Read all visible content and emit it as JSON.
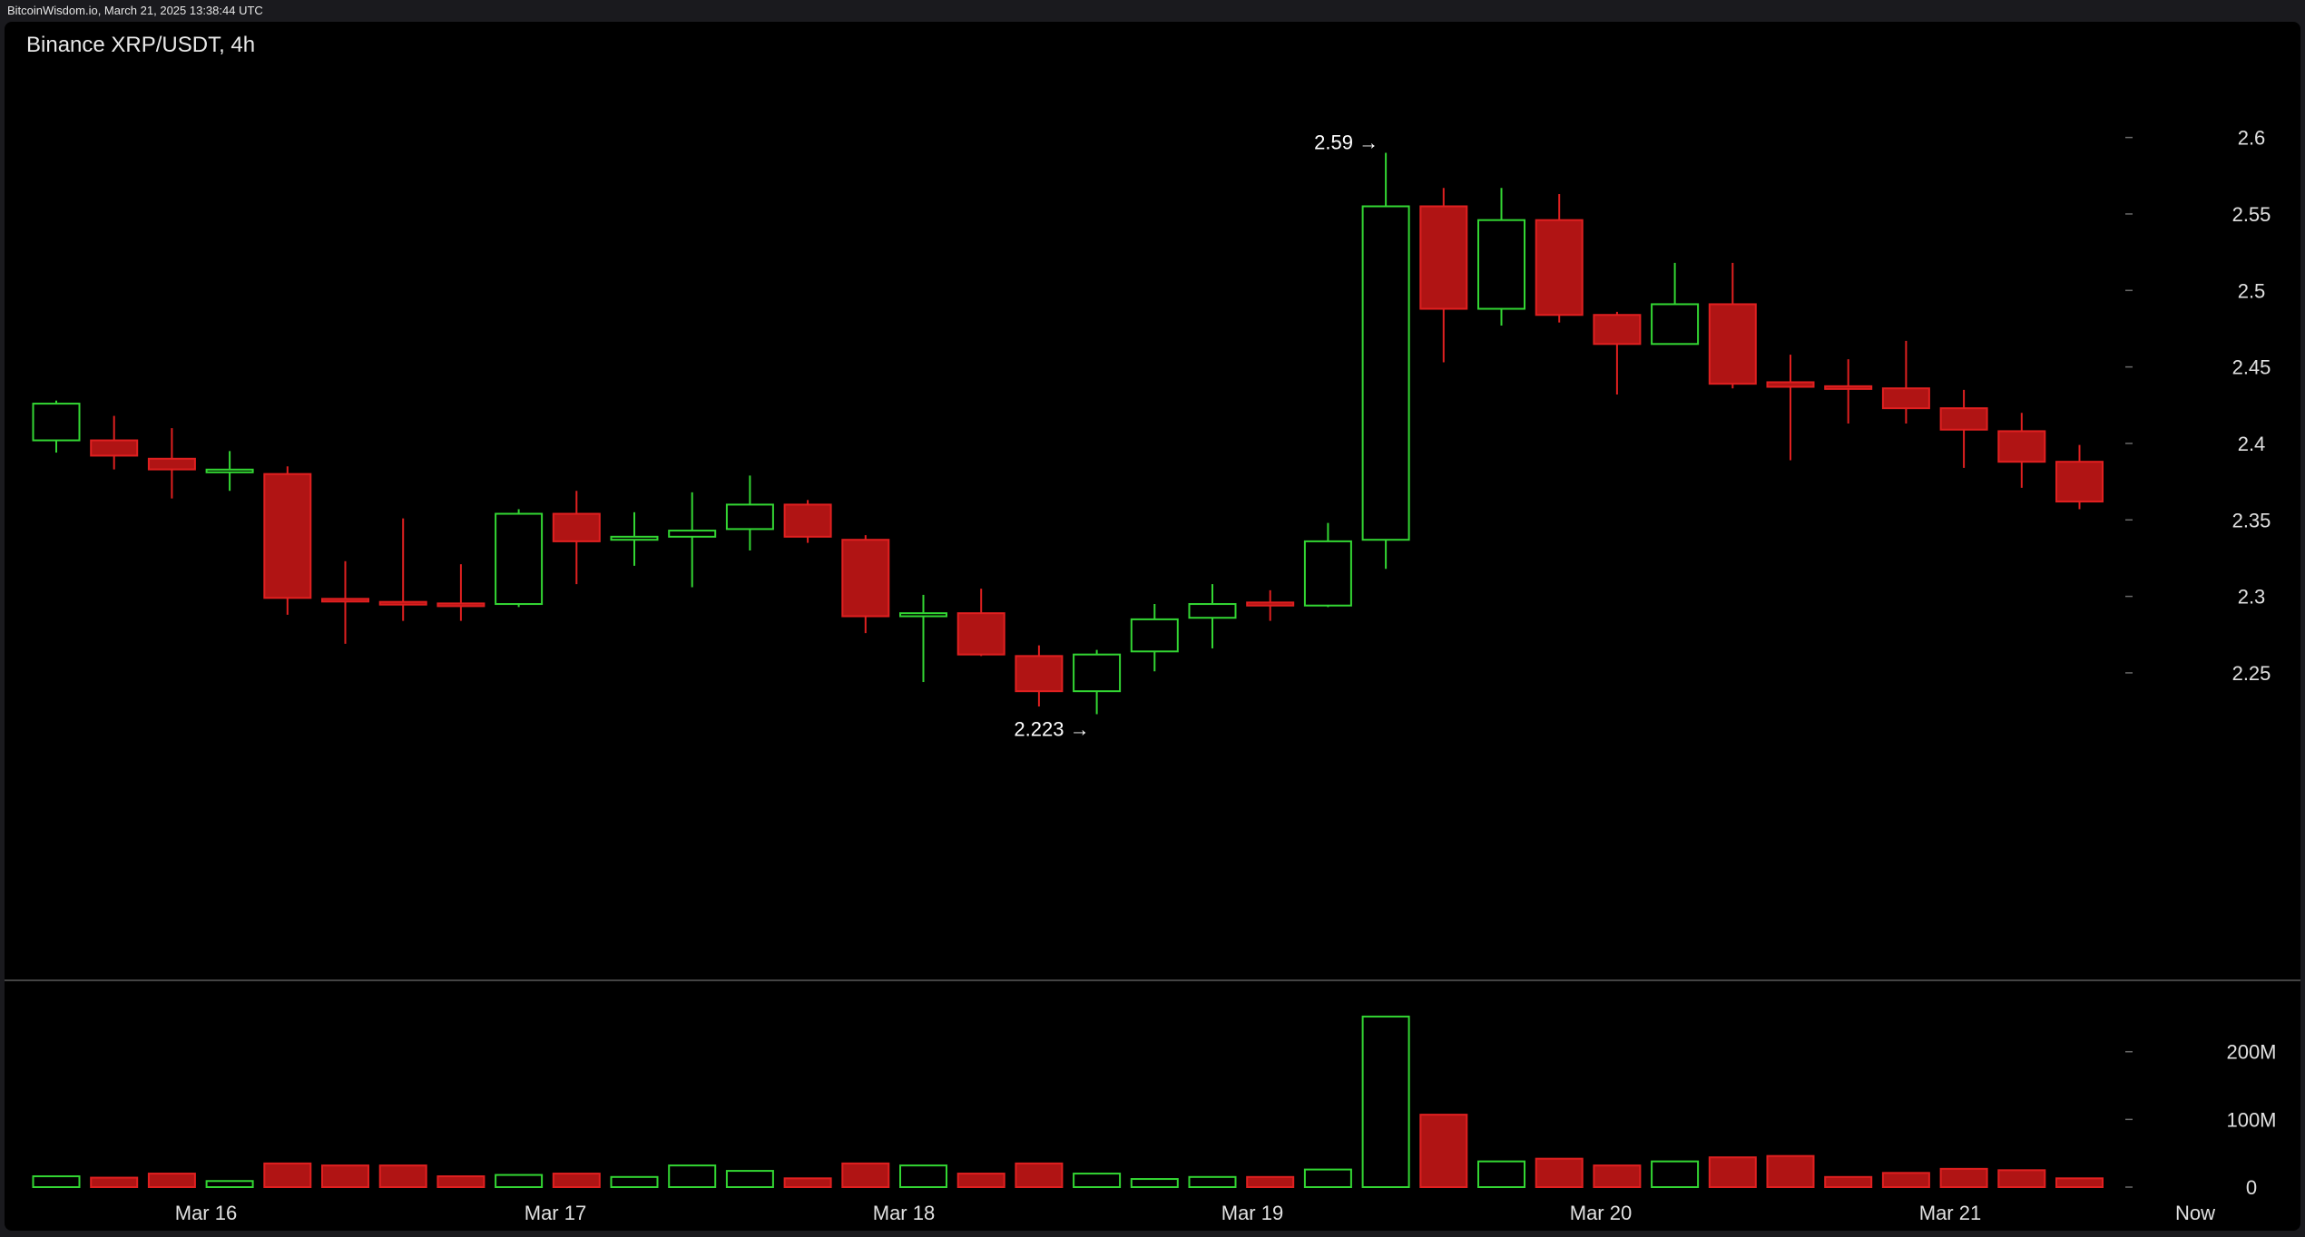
{
  "watermark": "BitcoinWisdom.io, March 21, 2025 13:38:44 UTC",
  "chart_data": {
    "type": "candlestick",
    "title": "Binance XRP/USDT, 4h",
    "price_axis": {
      "range": [
        2.18,
        2.63
      ],
      "ticks": [
        "2.25",
        "2.3",
        "2.35",
        "2.4",
        "2.45",
        "2.5",
        "2.55",
        "2.6"
      ]
    },
    "volume_axis": {
      "range": [
        0,
        280
      ],
      "unit": "M",
      "ticks": [
        {
          "v": 0,
          "label": "0"
        },
        {
          "v": 100,
          "label": "100M"
        },
        {
          "v": 200,
          "label": "200M"
        }
      ]
    },
    "x_labels": [
      "Mar 16",
      "Mar 17",
      "Mar 18",
      "Mar 19",
      "Mar 20",
      "Mar 21",
      "Now"
    ],
    "annotations": [
      {
        "text": "2.59 →",
        "candle_index": 23,
        "price": 2.59,
        "position": "high"
      },
      {
        "text": "2.223 →",
        "candle_index": 18,
        "price": 2.223,
        "position": "low"
      }
    ],
    "colors": {
      "up": "#33d633",
      "down": "#b01414",
      "down_edge": "#e02020",
      "axis_text": "#e0e0e0",
      "background": "#000000"
    },
    "candles": [
      {
        "o": 2.402,
        "h": 2.428,
        "l": 2.394,
        "c": 2.426,
        "v": 16
      },
      {
        "o": 2.402,
        "h": 2.418,
        "l": 2.383,
        "c": 2.392,
        "v": 14
      },
      {
        "o": 2.39,
        "h": 2.41,
        "l": 2.364,
        "c": 2.383,
        "v": 20
      },
      {
        "o": 2.382,
        "h": 2.395,
        "l": 2.369,
        "c": 2.382,
        "v": 9
      },
      {
        "o": 2.38,
        "h": 2.385,
        "l": 2.288,
        "c": 2.299,
        "v": 35
      },
      {
        "o": 2.298,
        "h": 2.323,
        "l": 2.269,
        "c": 2.297,
        "v": 32
      },
      {
        "o": 2.296,
        "h": 2.351,
        "l": 2.284,
        "c": 2.295,
        "v": 32
      },
      {
        "o": 2.295,
        "h": 2.321,
        "l": 2.284,
        "c": 2.294,
        "v": 16
      },
      {
        "o": 2.295,
        "h": 2.357,
        "l": 2.293,
        "c": 2.354,
        "v": 18
      },
      {
        "o": 2.354,
        "h": 2.369,
        "l": 2.308,
        "c": 2.336,
        "v": 20
      },
      {
        "o": 2.337,
        "h": 2.355,
        "l": 2.32,
        "c": 2.339,
        "v": 15
      },
      {
        "o": 2.339,
        "h": 2.368,
        "l": 2.306,
        "c": 2.343,
        "v": 32
      },
      {
        "o": 2.344,
        "h": 2.379,
        "l": 2.33,
        "c": 2.36,
        "v": 24
      },
      {
        "o": 2.36,
        "h": 2.363,
        "l": 2.335,
        "c": 2.339,
        "v": 13
      },
      {
        "o": 2.337,
        "h": 2.34,
        "l": 2.276,
        "c": 2.287,
        "v": 35
      },
      {
        "o": 2.287,
        "h": 2.301,
        "l": 2.244,
        "c": 2.289,
        "v": 32
      },
      {
        "o": 2.289,
        "h": 2.305,
        "l": 2.261,
        "c": 2.262,
        "v": 20
      },
      {
        "o": 2.261,
        "h": 2.268,
        "l": 2.228,
        "c": 2.238,
        "v": 35
      },
      {
        "o": 2.238,
        "h": 2.265,
        "l": 2.223,
        "c": 2.262,
        "v": 20
      },
      {
        "o": 2.264,
        "h": 2.295,
        "l": 2.251,
        "c": 2.285,
        "v": 12
      },
      {
        "o": 2.286,
        "h": 2.308,
        "l": 2.266,
        "c": 2.295,
        "v": 15
      },
      {
        "o": 2.296,
        "h": 2.304,
        "l": 2.284,
        "c": 2.294,
        "v": 15
      },
      {
        "o": 2.294,
        "h": 2.348,
        "l": 2.293,
        "c": 2.336,
        "v": 26
      },
      {
        "o": 2.337,
        "h": 2.59,
        "l": 2.318,
        "c": 2.555,
        "v": 252
      },
      {
        "o": 2.555,
        "h": 2.567,
        "l": 2.453,
        "c": 2.488,
        "v": 107
      },
      {
        "o": 2.488,
        "h": 2.567,
        "l": 2.477,
        "c": 2.546,
        "v": 38
      },
      {
        "o": 2.546,
        "h": 2.563,
        "l": 2.479,
        "c": 2.484,
        "v": 42
      },
      {
        "o": 2.484,
        "h": 2.486,
        "l": 2.432,
        "c": 2.465,
        "v": 32
      },
      {
        "o": 2.465,
        "h": 2.518,
        "l": 2.465,
        "c": 2.491,
        "v": 38
      },
      {
        "o": 2.491,
        "h": 2.518,
        "l": 2.436,
        "c": 2.439,
        "v": 44
      },
      {
        "o": 2.44,
        "h": 2.458,
        "l": 2.389,
        "c": 2.437,
        "v": 46
      },
      {
        "o": 2.437,
        "h": 2.455,
        "l": 2.413,
        "c": 2.436,
        "v": 15
      },
      {
        "o": 2.436,
        "h": 2.467,
        "l": 2.413,
        "c": 2.423,
        "v": 21
      },
      {
        "o": 2.423,
        "h": 2.435,
        "l": 2.384,
        "c": 2.409,
        "v": 27
      },
      {
        "o": 2.408,
        "h": 2.42,
        "l": 2.371,
        "c": 2.388,
        "v": 25
      },
      {
        "o": 2.388,
        "h": 2.399,
        "l": 2.357,
        "c": 2.362,
        "v": 13
      }
    ]
  }
}
